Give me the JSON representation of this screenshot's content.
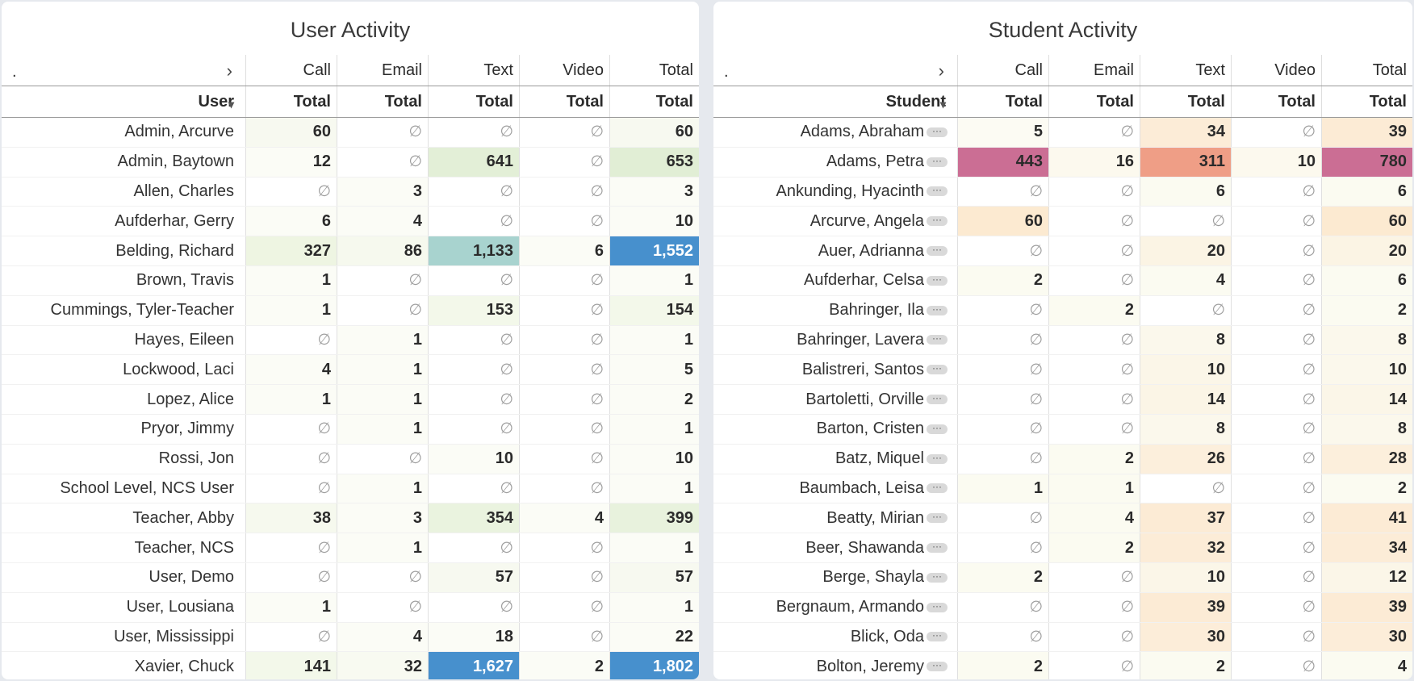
{
  "user_panel": {
    "title": "User Activity",
    "header_dot": ".",
    "header_chevron": "›",
    "channels": [
      "Call",
      "Email",
      "Text",
      "Video",
      "Total"
    ],
    "row_label": "User",
    "sub_label": "Total",
    "rows": [
      {
        "name": "Admin, Arcurve",
        "vals": [
          "60",
          "∅",
          "∅",
          "∅",
          "60"
        ],
        "bg": [
          "#f7f9f0",
          "#ffffff",
          "#ffffff",
          "#ffffff",
          "#f7f9f0"
        ]
      },
      {
        "name": "Admin, Baytown",
        "vals": [
          "12",
          "∅",
          "641",
          "∅",
          "653"
        ],
        "bg": [
          "#fbfcf6",
          "#ffffff",
          "#e3efd7",
          "#ffffff",
          "#e1eed5"
        ]
      },
      {
        "name": "Allen, Charles",
        "vals": [
          "∅",
          "3",
          "∅",
          "∅",
          "3"
        ],
        "bg": [
          "#ffffff",
          "#fbfcf6",
          "#ffffff",
          "#ffffff",
          "#fbfcf6"
        ]
      },
      {
        "name": "Aufderhar, Gerry",
        "vals": [
          "6",
          "4",
          "∅",
          "∅",
          "10"
        ],
        "bg": [
          "#fbfcf6",
          "#fbfcf6",
          "#ffffff",
          "#ffffff",
          "#fbfcf6"
        ]
      },
      {
        "name": "Belding, Richard",
        "vals": [
          "327",
          "86",
          "1,133",
          "6",
          "1,552"
        ],
        "bg": [
          "#eef5e2",
          "#f6f9ee",
          "#a8d3cf",
          "#fbfcf6",
          "#4790cd"
        ]
      },
      {
        "name": "Brown, Travis",
        "vals": [
          "1",
          "∅",
          "∅",
          "∅",
          "1"
        ],
        "bg": [
          "#fbfcf6",
          "#ffffff",
          "#ffffff",
          "#ffffff",
          "#fbfcf6"
        ]
      },
      {
        "name": "Cummings, Tyler-Teacher",
        "vals": [
          "1",
          "∅",
          "153",
          "∅",
          "154"
        ],
        "bg": [
          "#fbfcf6",
          "#ffffff",
          "#f3f8ea",
          "#ffffff",
          "#f3f8ea"
        ]
      },
      {
        "name": "Hayes, Eileen",
        "vals": [
          "∅",
          "1",
          "∅",
          "∅",
          "1"
        ],
        "bg": [
          "#ffffff",
          "#fbfcf6",
          "#ffffff",
          "#ffffff",
          "#fbfcf6"
        ]
      },
      {
        "name": "Lockwood, Laci",
        "vals": [
          "4",
          "1",
          "∅",
          "∅",
          "5"
        ],
        "bg": [
          "#fbfcf6",
          "#fbfcf6",
          "#ffffff",
          "#ffffff",
          "#fbfcf6"
        ]
      },
      {
        "name": "Lopez, Alice",
        "vals": [
          "1",
          "1",
          "∅",
          "∅",
          "2"
        ],
        "bg": [
          "#fbfcf6",
          "#fbfcf6",
          "#ffffff",
          "#ffffff",
          "#fbfcf6"
        ]
      },
      {
        "name": "Pryor, Jimmy",
        "vals": [
          "∅",
          "1",
          "∅",
          "∅",
          "1"
        ],
        "bg": [
          "#ffffff",
          "#fbfcf6",
          "#ffffff",
          "#ffffff",
          "#fbfcf6"
        ]
      },
      {
        "name": "Rossi, Jon",
        "vals": [
          "∅",
          "∅",
          "10",
          "∅",
          "10"
        ],
        "bg": [
          "#ffffff",
          "#ffffff",
          "#fbfcf6",
          "#ffffff",
          "#fbfcf6"
        ]
      },
      {
        "name": "School Level, NCS User",
        "vals": [
          "∅",
          "1",
          "∅",
          "∅",
          "1"
        ],
        "bg": [
          "#ffffff",
          "#fbfcf6",
          "#ffffff",
          "#ffffff",
          "#fbfcf6"
        ]
      },
      {
        "name": "Teacher, Abby",
        "vals": [
          "38",
          "3",
          "354",
          "4",
          "399"
        ],
        "bg": [
          "#f6f9ee",
          "#fbfcf6",
          "#eaf3df",
          "#fbfcf6",
          "#e8f2dd"
        ]
      },
      {
        "name": "Teacher, NCS",
        "vals": [
          "∅",
          "1",
          "∅",
          "∅",
          "1"
        ],
        "bg": [
          "#ffffff",
          "#fbfcf6",
          "#ffffff",
          "#ffffff",
          "#fbfcf6"
        ]
      },
      {
        "name": "User, Demo",
        "vals": [
          "∅",
          "∅",
          "57",
          "∅",
          "57"
        ],
        "bg": [
          "#ffffff",
          "#ffffff",
          "#f7f9f0",
          "#ffffff",
          "#f7f9f0"
        ]
      },
      {
        "name": "User, Lousiana",
        "vals": [
          "1",
          "∅",
          "∅",
          "∅",
          "1"
        ],
        "bg": [
          "#fbfcf6",
          "#ffffff",
          "#ffffff",
          "#ffffff",
          "#fbfcf6"
        ]
      },
      {
        "name": "User, Mississippi",
        "vals": [
          "∅",
          "4",
          "18",
          "∅",
          "22"
        ],
        "bg": [
          "#ffffff",
          "#fbfcf6",
          "#fbfcf6",
          "#ffffff",
          "#fbfcf6"
        ]
      },
      {
        "name": "Xavier, Chuck",
        "vals": [
          "141",
          "32",
          "1,627",
          "2",
          "1,802"
        ],
        "bg": [
          "#f3f8ea",
          "#f8faf1",
          "#4790cd",
          "#fbfcf6",
          "#4790cd"
        ]
      }
    ]
  },
  "student_panel": {
    "title": "Student Activity",
    "header_dot": ".",
    "header_chevron": "›",
    "channels": [
      "Call",
      "Email",
      "Text",
      "Video",
      "Total"
    ],
    "row_label": "Student",
    "sub_label": "Total",
    "more_glyph": "···",
    "rows": [
      {
        "name": "Adams, Abraham",
        "vals": [
          "5",
          "∅",
          "34",
          "∅",
          "39"
        ],
        "bg": [
          "#fcfbf3",
          "#ffffff",
          "#fcecd7",
          "#ffffff",
          "#fcebd5"
        ]
      },
      {
        "name": "Adams, Petra",
        "vals": [
          "443",
          "16",
          "311",
          "10",
          "780"
        ],
        "bg": [
          "#cb6e94",
          "#fcf9ee",
          "#ef9e86",
          "#fcf9ee",
          "#cb6e94"
        ]
      },
      {
        "name": "Ankunding, Hyacinth",
        "vals": [
          "∅",
          "∅",
          "6",
          "∅",
          "6"
        ],
        "bg": [
          "#ffffff",
          "#ffffff",
          "#fbfbf1",
          "#ffffff",
          "#fbfbf1"
        ]
      },
      {
        "name": "Arcurve, Angela",
        "vals": [
          "60",
          "∅",
          "∅",
          "∅",
          "60"
        ],
        "bg": [
          "#fcead1",
          "#ffffff",
          "#ffffff",
          "#ffffff",
          "#fcead1"
        ]
      },
      {
        "name": "Auer, Adrianna",
        "vals": [
          "∅",
          "∅",
          "20",
          "∅",
          "20"
        ],
        "bg": [
          "#ffffff",
          "#ffffff",
          "#fbf4e4",
          "#ffffff",
          "#fbf4e4"
        ]
      },
      {
        "name": "Aufderhar, Celsa",
        "vals": [
          "2",
          "∅",
          "4",
          "∅",
          "6"
        ],
        "bg": [
          "#fbfbf1",
          "#ffffff",
          "#fbfbf1",
          "#ffffff",
          "#fbfbf1"
        ]
      },
      {
        "name": "Bahringer, Ila",
        "vals": [
          "∅",
          "2",
          "∅",
          "∅",
          "2"
        ],
        "bg": [
          "#ffffff",
          "#fbfbf1",
          "#ffffff",
          "#ffffff",
          "#fbfbf1"
        ]
      },
      {
        "name": "Bahringer, Lavera",
        "vals": [
          "∅",
          "∅",
          "8",
          "∅",
          "8"
        ],
        "bg": [
          "#ffffff",
          "#ffffff",
          "#fbf8ec",
          "#ffffff",
          "#fbf8ec"
        ]
      },
      {
        "name": "Balistreri, Santos",
        "vals": [
          "∅",
          "∅",
          "10",
          "∅",
          "10"
        ],
        "bg": [
          "#ffffff",
          "#ffffff",
          "#fbf6e8",
          "#ffffff",
          "#fbf8ec"
        ]
      },
      {
        "name": "Bartoletti, Orville",
        "vals": [
          "∅",
          "∅",
          "14",
          "∅",
          "14"
        ],
        "bg": [
          "#ffffff",
          "#ffffff",
          "#fbf5e6",
          "#ffffff",
          "#fbf6e8"
        ]
      },
      {
        "name": "Barton, Cristen",
        "vals": [
          "∅",
          "∅",
          "8",
          "∅",
          "8"
        ],
        "bg": [
          "#ffffff",
          "#ffffff",
          "#fbf8ec",
          "#ffffff",
          "#fbf8ec"
        ]
      },
      {
        "name": "Batz, Miquel",
        "vals": [
          "∅",
          "2",
          "26",
          "∅",
          "28"
        ],
        "bg": [
          "#ffffff",
          "#fbfbf1",
          "#fcefdc",
          "#ffffff",
          "#fcefdc"
        ]
      },
      {
        "name": "Baumbach, Leisa",
        "vals": [
          "1",
          "1",
          "∅",
          "∅",
          "2"
        ],
        "bg": [
          "#fbfbf1",
          "#fbfbf1",
          "#ffffff",
          "#ffffff",
          "#fbfbf1"
        ]
      },
      {
        "name": "Beatty, Mirian",
        "vals": [
          "∅",
          "4",
          "37",
          "∅",
          "41"
        ],
        "bg": [
          "#ffffff",
          "#fbfbf1",
          "#fcebd5",
          "#ffffff",
          "#fcebd5"
        ]
      },
      {
        "name": "Beer, Shawanda",
        "vals": [
          "∅",
          "2",
          "32",
          "∅",
          "34"
        ],
        "bg": [
          "#ffffff",
          "#fbfbf1",
          "#fcecd7",
          "#ffffff",
          "#fcecd7"
        ]
      },
      {
        "name": "Berge, Shayla",
        "vals": [
          "2",
          "∅",
          "10",
          "∅",
          "12"
        ],
        "bg": [
          "#fbfbf1",
          "#ffffff",
          "#fbf6e8",
          "#ffffff",
          "#fbf6e8"
        ]
      },
      {
        "name": "Bergnaum, Armando",
        "vals": [
          "∅",
          "∅",
          "39",
          "∅",
          "39"
        ],
        "bg": [
          "#ffffff",
          "#ffffff",
          "#fcebd5",
          "#ffffff",
          "#fcebd5"
        ]
      },
      {
        "name": "Blick, Oda",
        "vals": [
          "∅",
          "∅",
          "30",
          "∅",
          "30"
        ],
        "bg": [
          "#ffffff",
          "#ffffff",
          "#fcedd9",
          "#ffffff",
          "#fcedd9"
        ]
      },
      {
        "name": "Bolton, Jeremy",
        "vals": [
          "2",
          "∅",
          "2",
          "∅",
          "4"
        ],
        "bg": [
          "#fbfbf1",
          "#ffffff",
          "#fbfbf1",
          "#ffffff",
          "#fbfbf1"
        ]
      }
    ]
  }
}
